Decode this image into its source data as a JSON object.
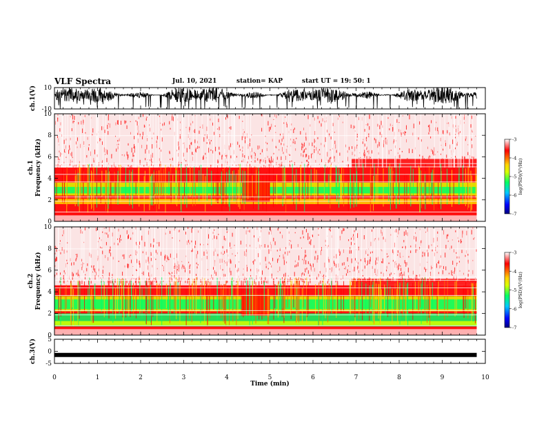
{
  "header": {
    "title": "VLF Spectra",
    "date": "Jul. 10, 2021",
    "station": "station= KAP",
    "start": "start UT = 19: 50: 1"
  },
  "colors": {
    "colormap": [
      "#000080",
      "#0000ff",
      "#00c8ff",
      "#00ff66",
      "#d8ff00",
      "#ffd200",
      "#ff6a00",
      "#ff0000",
      "#ffffff"
    ],
    "trace": "#000000"
  },
  "chart_data": [
    {
      "type": "line",
      "panel": "ch1-waveform",
      "ylabel": "ch.1(V)",
      "ylim": [
        -10,
        10
      ],
      "y_tick_labels": [
        "10",
        "-10"
      ],
      "description_values": "noisy waveform spanning approx -10 to 10 V over 0-9.8 min"
    },
    {
      "type": "heatmap",
      "panel": "ch1-spectrogram",
      "ylabel_line1": "ch.1",
      "ylabel_line2": "Frequency (kHz)",
      "ylim": [
        0,
        10
      ],
      "y_ticks": [
        0,
        2,
        4,
        6,
        8,
        10
      ],
      "y_tick_labels": [
        "0",
        "2",
        "4",
        "6",
        "8",
        "10"
      ],
      "colorbar": {
        "label": "log(PSD)(V²/Hz)",
        "range": [
          -7,
          -3
        ],
        "tick_labels": [
          "-3",
          "-4",
          "-5",
          "-6",
          "-7"
        ]
      }
    },
    {
      "type": "heatmap",
      "panel": "ch2-spectrogram",
      "ylabel_line1": "ch.2",
      "ylabel_line2": "Frequency (kHz)",
      "ylim": [
        0,
        10
      ],
      "y_ticks": [
        0,
        2,
        4,
        6,
        8,
        10
      ],
      "y_tick_labels": [
        "0",
        "2",
        "4",
        "6",
        "8",
        "10"
      ],
      "colorbar": {
        "label": "log(PSD)(V²/Hz)",
        "range": [
          -7,
          -3
        ],
        "tick_labels": [
          "-3",
          "-4",
          "-5",
          "-6",
          "-7"
        ]
      }
    },
    {
      "type": "line",
      "panel": "ch3-waveform",
      "ylabel": "ch.3(V)",
      "ylim": [
        -5,
        5
      ],
      "y_tick_labels": [
        "5",
        "0",
        "-5"
      ],
      "level_value": -1.5
    }
  ],
  "x_axis": {
    "label": "Time (min)",
    "range": [
      0,
      10
    ],
    "data_end": 9.8,
    "tick_labels": [
      "0",
      "1",
      "2",
      "3",
      "4",
      "5",
      "6",
      "7",
      "8",
      "9",
      "10"
    ]
  }
}
